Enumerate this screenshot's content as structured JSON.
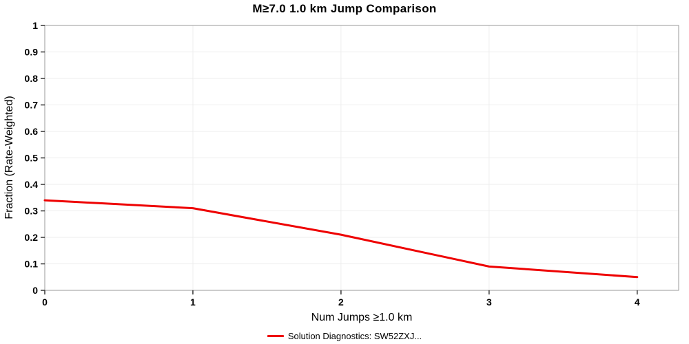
{
  "title": "M≥7.0 1.0 km Jump Comparison",
  "legend": {
    "label": "Solution Diagnostics: SW52ZXJ..."
  },
  "chart_data": {
    "type": "line",
    "title": "M≥7.0 1.0 km Jump Comparison",
    "xlabel": "Num Jumps ≥1.0 km",
    "ylabel": "Fraction (Rate-Weighted)",
    "x": [
      0,
      1,
      2,
      3,
      4
    ],
    "series": [
      {
        "name": "Solution Diagnostics: SW52ZXJ...",
        "values": [
          0.34,
          0.31,
          0.21,
          0.09,
          0.05
        ],
        "color": "#ee0000"
      }
    ],
    "xlim": [
      0,
      4.28
    ],
    "ylim": [
      0,
      1
    ],
    "xticks": [
      0,
      1,
      2,
      3,
      4
    ],
    "yticks": [
      0,
      0.1,
      0.2,
      0.3,
      0.4,
      0.5,
      0.6,
      0.7,
      0.8,
      0.9,
      1
    ],
    "grid": true,
    "grid_color": "#ededed",
    "frame_color": "#9a9a9a",
    "tick_color": "#333333",
    "legend_position": "bottom"
  }
}
